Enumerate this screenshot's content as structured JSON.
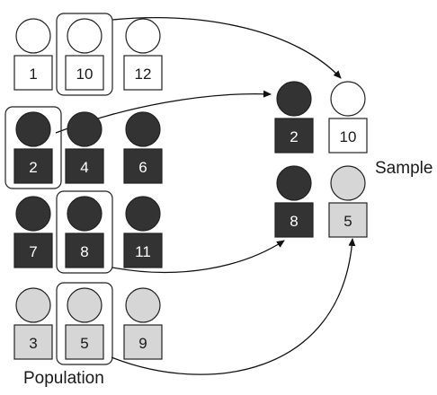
{
  "colors": {
    "dark": "#333333",
    "light": "#d6d6d6",
    "white": "#ffffff",
    "stroke": "#222222"
  },
  "population": {
    "label": "Population",
    "members": [
      {
        "id": 1,
        "label": "1",
        "shade": "white",
        "selected": false
      },
      {
        "id": 10,
        "label": "10",
        "shade": "white",
        "selected": true
      },
      {
        "id": 12,
        "label": "12",
        "shade": "white",
        "selected": false
      },
      {
        "id": 2,
        "label": "2",
        "shade": "dark",
        "selected": true
      },
      {
        "id": 4,
        "label": "4",
        "shade": "dark",
        "selected": false
      },
      {
        "id": 6,
        "label": "6",
        "shade": "dark",
        "selected": false
      },
      {
        "id": 7,
        "label": "7",
        "shade": "dark",
        "selected": false
      },
      {
        "id": 8,
        "label": "8",
        "shade": "dark",
        "selected": true
      },
      {
        "id": 11,
        "label": "11",
        "shade": "dark",
        "selected": false
      },
      {
        "id": 3,
        "label": "3",
        "shade": "light",
        "selected": false
      },
      {
        "id": 5,
        "label": "5",
        "shade": "light",
        "selected": true
      },
      {
        "id": 9,
        "label": "9",
        "shade": "light",
        "selected": false
      }
    ]
  },
  "sample": {
    "label": "Sample",
    "members": [
      {
        "id": 2,
        "label": "2",
        "shade": "dark"
      },
      {
        "id": 10,
        "label": "10",
        "shade": "white"
      },
      {
        "id": 8,
        "label": "8",
        "shade": "dark"
      },
      {
        "id": 5,
        "label": "5",
        "shade": "light"
      }
    ]
  }
}
